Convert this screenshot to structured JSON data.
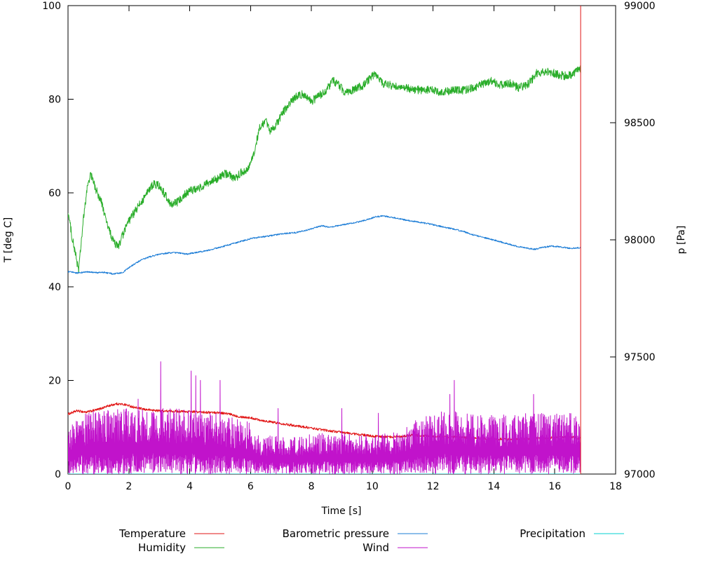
{
  "chart_data": {
    "type": "line",
    "title": "",
    "xlabel": "Time [s]",
    "ylabel_left": "T [deg C]",
    "ylabel_right": "p [Pa]",
    "x_range": [
      0,
      18
    ],
    "y_left_range": [
      0,
      100
    ],
    "y_right_range": [
      97000,
      99000
    ],
    "x_ticks": [
      0,
      2,
      4,
      6,
      8,
      10,
      12,
      14,
      16,
      18
    ],
    "y_left_ticks": [
      0,
      20,
      40,
      60,
      80,
      100
    ],
    "y_right_ticks": [
      97000,
      97500,
      98000,
      98500,
      99000
    ],
    "x_end": 16.85,
    "grid": false,
    "legend_position": "below",
    "series": [
      {
        "name": "Temperature",
        "axis": "left",
        "color": "#e11414",
        "style": "noisy_line",
        "noise": 0.25,
        "keypoints": [
          [
            0,
            12.8
          ],
          [
            0.3,
            13.5
          ],
          [
            0.6,
            13.2
          ],
          [
            1,
            13.8
          ],
          [
            1.3,
            14.5
          ],
          [
            1.6,
            15
          ],
          [
            1.9,
            14.8
          ],
          [
            2.2,
            14.2
          ],
          [
            2.5,
            13.8
          ],
          [
            3,
            13.5
          ],
          [
            3.5,
            13.4
          ],
          [
            4,
            13.3
          ],
          [
            4.5,
            13.2
          ],
          [
            5,
            13.1
          ],
          [
            5.3,
            12.8
          ],
          [
            5.6,
            12.3
          ],
          [
            6,
            12
          ],
          [
            6.5,
            11.3
          ],
          [
            7,
            10.8
          ],
          [
            7.5,
            10.3
          ],
          [
            8,
            9.8
          ],
          [
            8.5,
            9.3
          ],
          [
            9,
            8.9
          ],
          [
            9.5,
            8.5
          ],
          [
            10,
            8.1
          ],
          [
            10.5,
            7.9
          ],
          [
            11,
            8.1
          ],
          [
            11.3,
            8.3
          ],
          [
            11.6,
            8.2
          ],
          [
            12,
            8
          ],
          [
            12.5,
            7.9
          ],
          [
            13,
            7.8
          ],
          [
            13.5,
            7.7
          ],
          [
            14,
            7.5
          ],
          [
            14.5,
            7.4
          ],
          [
            15,
            7.5
          ],
          [
            15.5,
            7.6
          ],
          [
            16,
            7.8
          ],
          [
            16.4,
            8
          ],
          [
            16.85,
            7.6
          ]
        ],
        "end_spike": {
          "x": 16.85,
          "from": 0,
          "to": 100
        }
      },
      {
        "name": "Humidity",
        "axis": "left",
        "color": "#29ad29",
        "style": "noisy_line",
        "noise": 0.9,
        "keypoints": [
          [
            0,
            56
          ],
          [
            0.15,
            50
          ],
          [
            0.35,
            43.5
          ],
          [
            0.5,
            54
          ],
          [
            0.65,
            62
          ],
          [
            0.75,
            64
          ],
          [
            0.9,
            61
          ],
          [
            1.1,
            58
          ],
          [
            1.3,
            53
          ],
          [
            1.5,
            49.5
          ],
          [
            1.65,
            48.5
          ],
          [
            1.8,
            51
          ],
          [
            2,
            54
          ],
          [
            2.2,
            56
          ],
          [
            2.5,
            59
          ],
          [
            2.8,
            62
          ],
          [
            3,
            61.5
          ],
          [
            3.2,
            59.5
          ],
          [
            3.4,
            57.5
          ],
          [
            3.6,
            58
          ],
          [
            3.8,
            59.5
          ],
          [
            4,
            60.5
          ],
          [
            4.3,
            61
          ],
          [
            4.6,
            62
          ],
          [
            4.9,
            63
          ],
          [
            5.1,
            64
          ],
          [
            5.3,
            64
          ],
          [
            5.5,
            63
          ],
          [
            5.7,
            64.5
          ],
          [
            5.9,
            65
          ],
          [
            6.1,
            68
          ],
          [
            6.3,
            74
          ],
          [
            6.5,
            75.5
          ],
          [
            6.65,
            73
          ],
          [
            6.8,
            74
          ],
          [
            7,
            76.5
          ],
          [
            7.2,
            78.5
          ],
          [
            7.4,
            80
          ],
          [
            7.6,
            81
          ],
          [
            7.8,
            81
          ],
          [
            8,
            79.5
          ],
          [
            8.2,
            80.5
          ],
          [
            8.5,
            82
          ],
          [
            8.7,
            84
          ],
          [
            8.9,
            83
          ],
          [
            9.1,
            81.5
          ],
          [
            9.4,
            82
          ],
          [
            9.7,
            83
          ],
          [
            10,
            85
          ],
          [
            10.1,
            85.5
          ],
          [
            10.3,
            83.5
          ],
          [
            10.6,
            83
          ],
          [
            11,
            82.5
          ],
          [
            11.5,
            82
          ],
          [
            12,
            82
          ],
          [
            12.3,
            81.5
          ],
          [
            12.7,
            82
          ],
          [
            13,
            82
          ],
          [
            13.4,
            82.5
          ],
          [
            13.7,
            83.5
          ],
          [
            13.9,
            84
          ],
          [
            14.2,
            83
          ],
          [
            14.5,
            83.5
          ],
          [
            14.8,
            82.5
          ],
          [
            15.1,
            83
          ],
          [
            15.4,
            85.5
          ],
          [
            15.7,
            86
          ],
          [
            16,
            85.5
          ],
          [
            16.3,
            85
          ],
          [
            16.6,
            85.3
          ],
          [
            16.85,
            86.5
          ]
        ]
      },
      {
        "name": "Barometric pressure",
        "axis": "right",
        "color": "#1b7cd6",
        "style": "noisy_line",
        "noise": 3,
        "keypoints": [
          [
            0,
            97864
          ],
          [
            0.3,
            97858
          ],
          [
            0.6,
            97863
          ],
          [
            0.9,
            97860
          ],
          [
            1.2,
            97861
          ],
          [
            1.5,
            97854
          ],
          [
            1.8,
            97861
          ],
          [
            2.1,
            97890
          ],
          [
            2.4,
            97914
          ],
          [
            2.7,
            97928
          ],
          [
            3,
            97938
          ],
          [
            3.3,
            97944
          ],
          [
            3.6,
            97945
          ],
          [
            3.9,
            97939
          ],
          [
            4.2,
            97946
          ],
          [
            4.5,
            97952
          ],
          [
            4.8,
            97962
          ],
          [
            5.1,
            97972
          ],
          [
            5.4,
            97983
          ],
          [
            5.7,
            97994
          ],
          [
            6,
            98005
          ],
          [
            6.3,
            98012
          ],
          [
            6.6,
            98016
          ],
          [
            6.9,
            98023
          ],
          [
            7.2,
            98028
          ],
          [
            7.5,
            98031
          ],
          [
            7.8,
            98040
          ],
          [
            8.1,
            98051
          ],
          [
            8.35,
            98060
          ],
          [
            8.6,
            98054
          ],
          [
            8.9,
            98062
          ],
          [
            9.2,
            98068
          ],
          [
            9.5,
            98075
          ],
          [
            9.8,
            98085
          ],
          [
            10.1,
            98098
          ],
          [
            10.35,
            98102
          ],
          [
            10.6,
            98097
          ],
          [
            10.9,
            98090
          ],
          [
            11.2,
            98082
          ],
          [
            11.5,
            98076
          ],
          [
            11.8,
            98070
          ],
          [
            12.1,
            98062
          ],
          [
            12.4,
            98053
          ],
          [
            12.7,
            98045
          ],
          [
            13,
            98036
          ],
          [
            13.3,
            98022
          ],
          [
            13.6,
            98012
          ],
          [
            13.9,
            98002
          ],
          [
            14.2,
            97992
          ],
          [
            14.5,
            97981
          ],
          [
            14.8,
            97971
          ],
          [
            15.1,
            97964
          ],
          [
            15.35,
            97959
          ],
          [
            15.6,
            97968
          ],
          [
            15.9,
            97973
          ],
          [
            16.2,
            97970
          ],
          [
            16.5,
            97964
          ],
          [
            16.85,
            97967
          ]
        ]
      },
      {
        "name": "Precipitation",
        "axis": "left",
        "color": "#00d0d0",
        "style": "noisy_line",
        "noise": 0,
        "keypoints": [
          [
            0,
            0
          ],
          [
            16.85,
            0
          ]
        ]
      },
      {
        "name": "Wind",
        "axis": "left",
        "color": "#c113cb",
        "style": "noise_band",
        "envelope": [
          [
            0,
            9
          ],
          [
            0.3,
            13
          ],
          [
            1,
            13.5
          ],
          [
            2,
            14
          ],
          [
            3,
            14
          ],
          [
            4,
            14
          ],
          [
            5,
            13
          ],
          [
            5.4,
            12
          ],
          [
            6,
            11
          ],
          [
            6.3,
            8.5
          ],
          [
            7,
            8
          ],
          [
            8,
            8.5
          ],
          [
            9,
            9
          ],
          [
            10,
            8.5
          ],
          [
            11,
            9
          ],
          [
            11.4,
            12
          ],
          [
            12,
            12.5
          ],
          [
            12.5,
            14
          ],
          [
            13,
            13
          ],
          [
            14,
            12.5
          ],
          [
            15,
            13
          ],
          [
            16,
            13
          ],
          [
            16.85,
            13
          ]
        ],
        "spikes": [
          [
            2.3,
            16
          ],
          [
            3.05,
            24
          ],
          [
            4.05,
            22
          ],
          [
            4.2,
            21
          ],
          [
            4.35,
            20
          ],
          [
            5,
            20
          ],
          [
            6.9,
            14
          ],
          [
            9,
            14
          ],
          [
            10.2,
            13
          ],
          [
            12.55,
            17
          ],
          [
            12.7,
            20
          ],
          [
            15.3,
            17
          ],
          [
            16.4,
            12
          ]
        ]
      }
    ]
  }
}
